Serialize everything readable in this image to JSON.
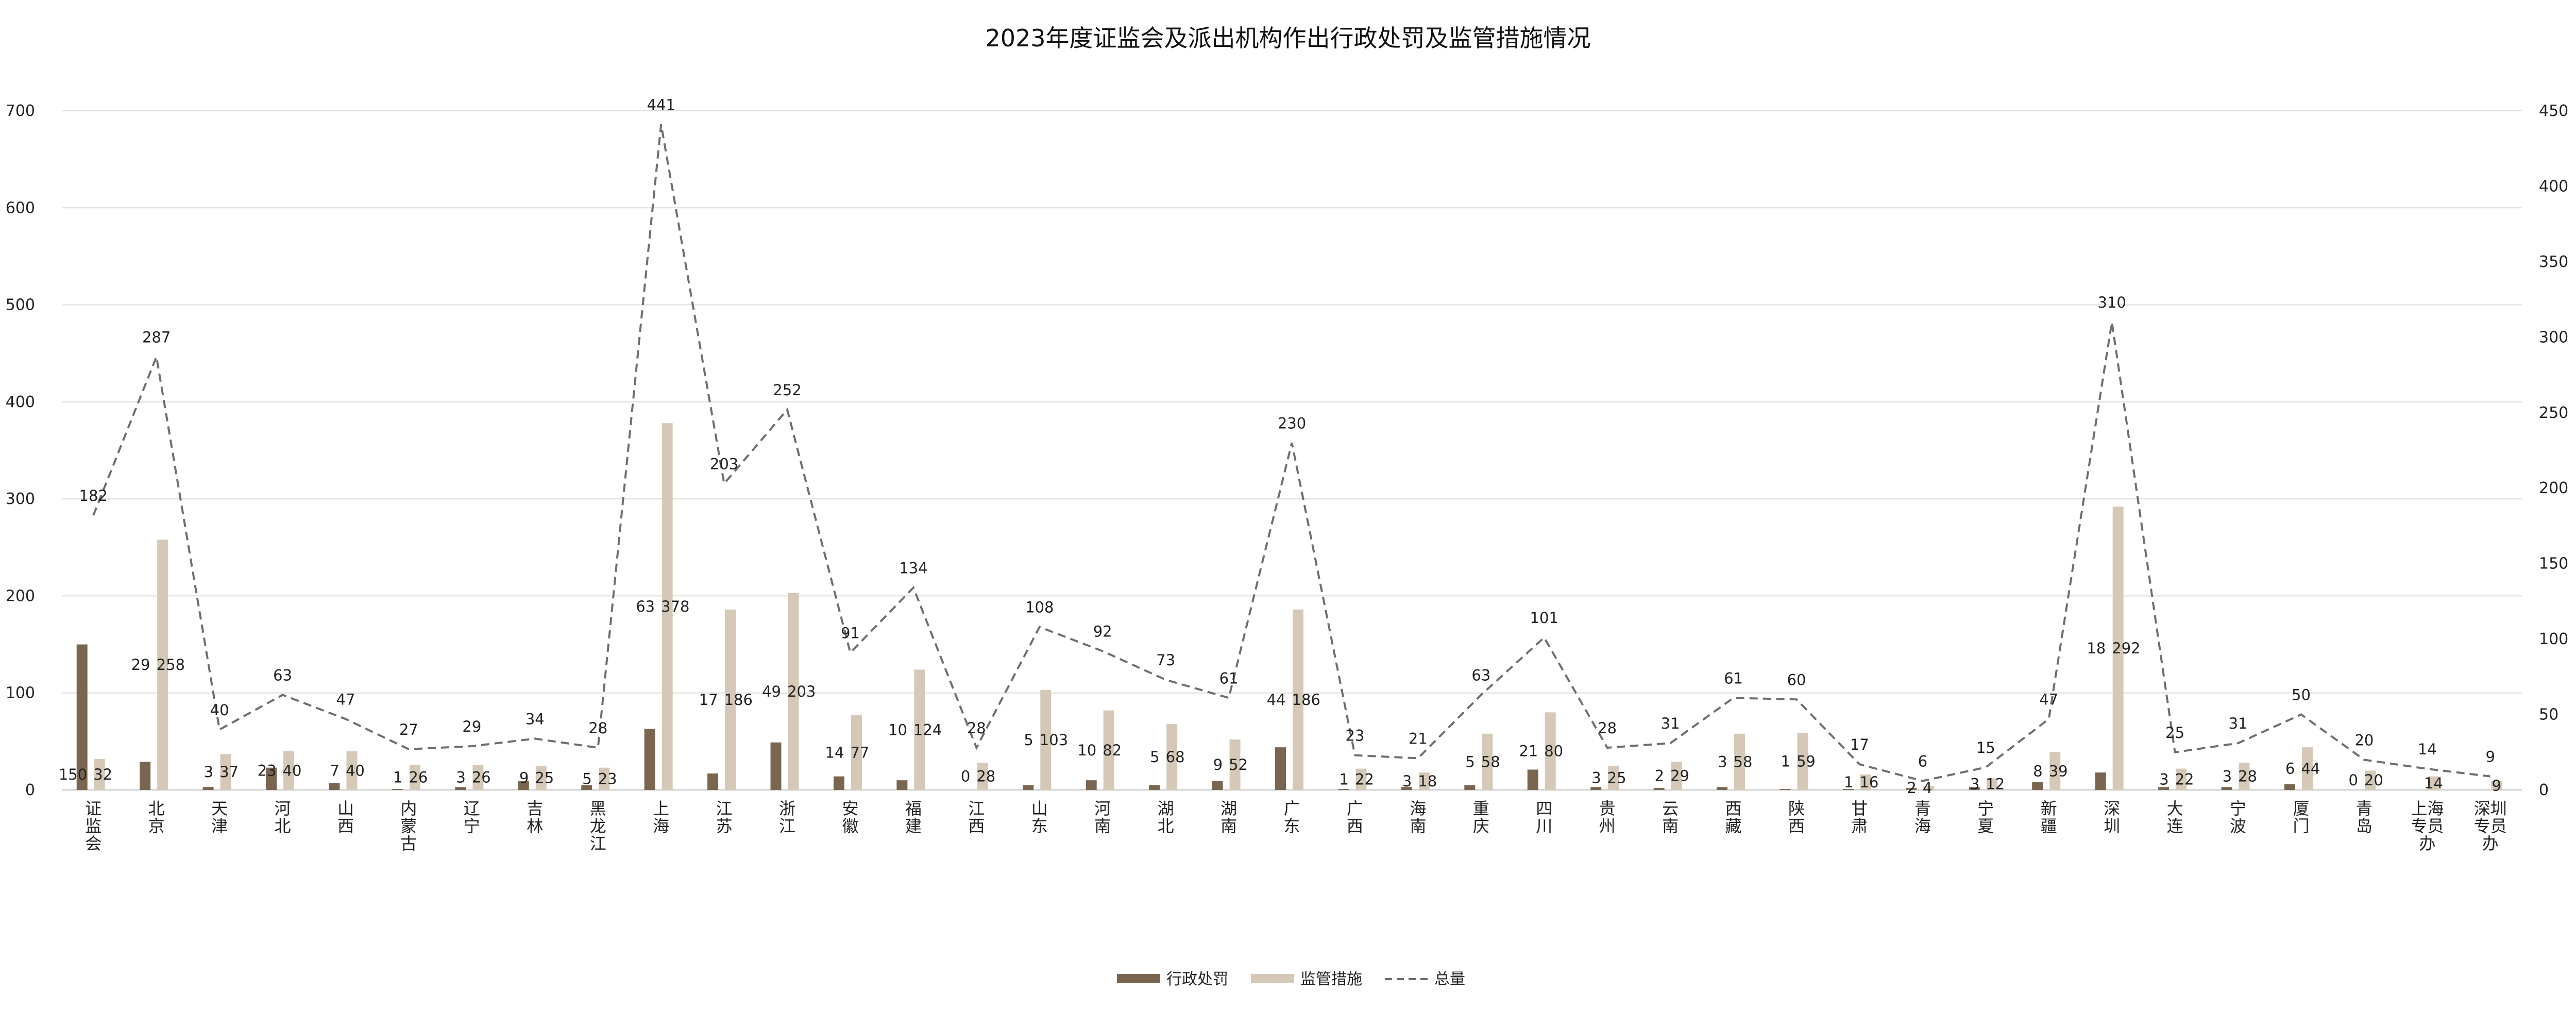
{
  "chart_data": {
    "type": "bar",
    "title": "2023年度证监会及派出机构作出行政处罚及监管措施情况",
    "categories": [
      "证监会",
      "北京",
      "天津",
      "河北",
      "山西",
      "内蒙古",
      "辽宁",
      "吉林",
      "黑龙江",
      "上海",
      "江苏",
      "浙江",
      "安徽",
      "福建",
      "江西",
      "山东",
      "河南",
      "湖北",
      "湖南",
      "广东",
      "广西",
      "海南",
      "重庆",
      "四川",
      "贵州",
      "云南",
      "西藏",
      "陕西",
      "甘肃",
      "青海",
      "宁夏",
      "新疆",
      "深圳",
      "大连",
      "宁波",
      "厦门",
      "青岛",
      "上海专员办",
      "深圳专员办"
    ],
    "series": [
      {
        "name": "行政处罚",
        "type": "bar",
        "axis": "left",
        "color": "#7a6650",
        "values": [
          150,
          29,
          3,
          23,
          7,
          1,
          3,
          9,
          5,
          63,
          17,
          49,
          14,
          10,
          0,
          5,
          10,
          5,
          9,
          44,
          1,
          3,
          5,
          21,
          3,
          2,
          3,
          1,
          1,
          2,
          3,
          8,
          18,
          3,
          3,
          6,
          0,
          0,
          0
        ],
        "labels": [
          "150",
          "29",
          "3",
          "23",
          "7",
          "1",
          "3",
          "9",
          "5",
          "63",
          "17",
          "49",
          "14",
          "10",
          "0",
          "5",
          "10",
          "5",
          "9",
          "44",
          "1",
          "3",
          "5",
          "21",
          "3",
          "2",
          "3",
          "1",
          "1",
          "2",
          "3",
          "8",
          "18",
          "3",
          "3",
          "6",
          "0",
          "",
          ""
        ]
      },
      {
        "name": "监管措施",
        "type": "bar",
        "axis": "left",
        "color": "#d5c8b7",
        "values": [
          32,
          258,
          37,
          40,
          40,
          26,
          26,
          25,
          23,
          378,
          186,
          203,
          77,
          124,
          28,
          103,
          82,
          68,
          52,
          186,
          22,
          18,
          58,
          80,
          25,
          29,
          58,
          59,
          16,
          4,
          12,
          39,
          292,
          22,
          28,
          44,
          20,
          14,
          9
        ],
        "labels": [
          "32",
          "258",
          "37",
          "40",
          "40",
          "26",
          "26",
          "25",
          "23",
          "378",
          "186",
          "203",
          "77",
          "124",
          "28",
          "103",
          "82",
          "68",
          "52",
          "186",
          "22",
          "18",
          "58",
          "80",
          "25",
          "29",
          "58",
          "59",
          "16",
          "4",
          "12",
          "39",
          "292",
          "22",
          "28",
          "44",
          "20",
          "14",
          "9"
        ]
      },
      {
        "name": "总量",
        "type": "line",
        "axis": "right",
        "color": "#6e6e6e",
        "dash": true,
        "values": [
          182,
          287,
          40,
          63,
          47,
          27,
          29,
          34,
          28,
          441,
          203,
          252,
          91,
          134,
          28,
          108,
          92,
          73,
          61,
          230,
          23,
          21,
          63,
          101,
          28,
          31,
          61,
          60,
          17,
          6,
          15,
          47,
          310,
          25,
          31,
          50,
          20,
          14,
          9
        ]
      }
    ],
    "y_left": {
      "min": 0,
      "max": 700,
      "ticks": [
        "0",
        "100",
        "200",
        "300",
        "400",
        "500",
        "600",
        "700"
      ]
    },
    "y_right": {
      "min": 0,
      "max": 450,
      "ticks": [
        "0",
        "50",
        "100",
        "150",
        "200",
        "250",
        "300",
        "350",
        "400",
        "450"
      ]
    },
    "grid": true,
    "legend": {
      "position": "bottom",
      "items": [
        {
          "label": "行政处罚",
          "marker": "bar",
          "color": "#7a6650"
        },
        {
          "label": "监管措施",
          "marker": "bar",
          "color": "#d5c8b7"
        },
        {
          "label": "总量",
          "marker": "dashed-line",
          "color": "#6e6e6e"
        }
      ]
    }
  }
}
